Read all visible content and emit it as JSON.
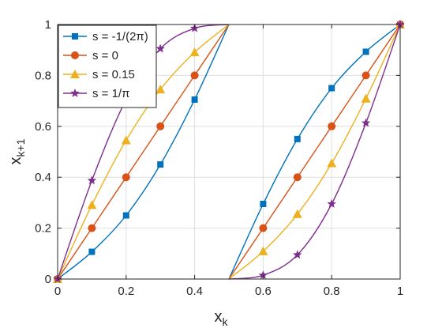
{
  "chart_data": {
    "type": "line",
    "xlabel": "x",
    "xlabel_sub": "k",
    "ylabel": "x",
    "ylabel_sub": "k+1",
    "xlim": [
      0,
      1
    ],
    "ylim": [
      0,
      1
    ],
    "xticks": [
      0,
      0.2,
      0.4,
      0.6,
      0.8,
      1
    ],
    "yticks": [
      0,
      0.2,
      0.4,
      0.6,
      0.8,
      1
    ],
    "xtick_labels": [
      "0",
      "0.2",
      "0.4",
      "0.6",
      "0.8",
      "1"
    ],
    "ytick_labels": [
      "0",
      "0.2",
      "0.4",
      "0.6",
      "0.8",
      "1"
    ],
    "grid": true,
    "legend_position": "top-left",
    "series": [
      {
        "name": "s = -1/(2π)",
        "color": "#0072BD",
        "marker": "square",
        "markers": [
          [
            0,
            0
          ],
          [
            0.1,
            0.107
          ],
          [
            0.2,
            0.25
          ],
          [
            0.3,
            0.45
          ],
          [
            0.4,
            0.705
          ],
          [
            0.6,
            0.295
          ],
          [
            0.7,
            0.55
          ],
          [
            0.8,
            0.75
          ],
          [
            0.9,
            0.893
          ],
          [
            1,
            1
          ]
        ]
      },
      {
        "name": "s = 0",
        "color": "#D95319",
        "marker": "circle",
        "markers": [
          [
            0,
            0
          ],
          [
            0.1,
            0.2
          ],
          [
            0.2,
            0.4
          ],
          [
            0.3,
            0.6
          ],
          [
            0.4,
            0.8
          ],
          [
            0.6,
            0.2
          ],
          [
            0.7,
            0.4
          ],
          [
            0.8,
            0.6
          ],
          [
            0.9,
            0.8
          ],
          [
            1,
            1
          ]
        ]
      },
      {
        "name": "s = 0.15",
        "color": "#EDB120",
        "marker": "triangle",
        "markers": [
          [
            0,
            0
          ],
          [
            0.1,
            0.291
          ],
          [
            0.2,
            0.545
          ],
          [
            0.3,
            0.745
          ],
          [
            0.4,
            0.891
          ],
          [
            0.6,
            0.109
          ],
          [
            0.7,
            0.255
          ],
          [
            0.8,
            0.455
          ],
          [
            0.9,
            0.709
          ],
          [
            1,
            1
          ]
        ]
      },
      {
        "name": "s = 1/π",
        "color": "#7E2F8E",
        "marker": "star",
        "markers": [
          [
            0,
            0
          ],
          [
            0.1,
            0.387
          ],
          [
            0.2,
            0.705
          ],
          [
            0.3,
            0.905
          ],
          [
            0.4,
            0.985
          ],
          [
            0.6,
            0.015
          ],
          [
            0.7,
            0.095
          ],
          [
            0.8,
            0.295
          ],
          [
            0.9,
            0.613
          ],
          [
            1,
            1
          ]
        ]
      }
    ]
  }
}
